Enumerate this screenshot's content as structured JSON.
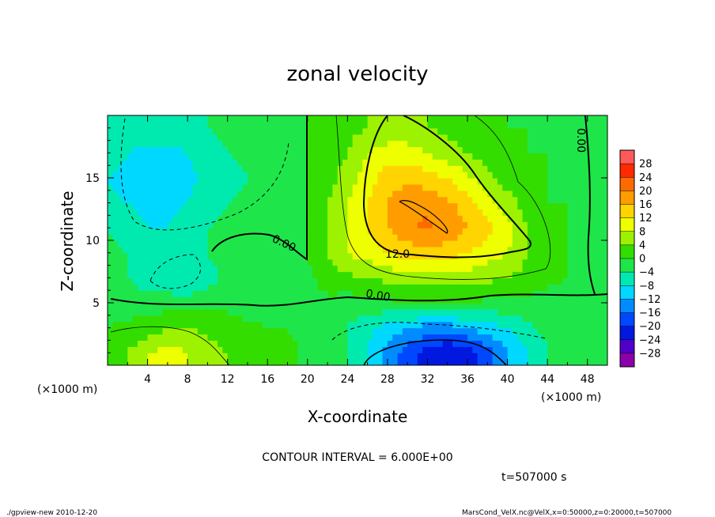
{
  "chart_data": {
    "type": "heatmap",
    "title": "zonal velocity",
    "xlabel": "X-coordinate",
    "ylabel": "Z-coordinate",
    "x_unit_label": "(×1000 m)",
    "z_unit_label": "(×1000 m)",
    "xlim": [
      0,
      50
    ],
    "ylim": [
      0,
      20
    ],
    "x_ticks": [
      4,
      8,
      12,
      16,
      20,
      24,
      28,
      32,
      36,
      40,
      44,
      48
    ],
    "y_ticks": [
      5,
      10,
      15
    ],
    "contour_interval_text": "CONTOUR INTERVAL = 6.000E+00",
    "time_text": "t=507000 s",
    "footer_left": "./gpview-new 2010-12-20",
    "footer_right": "MarsCond_VelX.nc@VelX,x=0:50000,z=0:20000,t=507000",
    "contour_labels": [
      {
        "text": "0.00",
        "x": 17.5,
        "z": 9.5
      },
      {
        "text": "12.0",
        "x": 29,
        "z": 8.6
      },
      {
        "text": "0.00",
        "x": 27,
        "z": 5.3
      },
      {
        "text": "0.00",
        "x": 47,
        "z": 18
      }
    ],
    "colorbar": {
      "levels": [
        "28",
        "24",
        "20",
        "16",
        "12",
        "8",
        "4",
        "0",
        "−4",
        "−8",
        "−12",
        "−16",
        "−20",
        "−24",
        "−28"
      ],
      "colors": [
        "#ff5a5a",
        "#ff2a00",
        "#ff6a00",
        "#ff9c00",
        "#ffd400",
        "#eeff00",
        "#9cf200",
        "#33dd00",
        "#1ee64a",
        "#00eab0",
        "#00d8ff",
        "#008cff",
        "#0048ff",
        "#0018e0",
        "#5000c8",
        "#8c00aa"
      ]
    },
    "field": {
      "nx": 26,
      "nz": 10,
      "x": [
        0,
        2,
        4,
        6,
        8,
        10,
        12,
        14,
        16,
        18,
        20,
        22,
        24,
        26,
        28,
        30,
        32,
        34,
        36,
        38,
        40,
        42,
        44,
        46,
        48,
        50
      ],
      "z": [
        1,
        3,
        5,
        7,
        9,
        11,
        13,
        15,
        17,
        19
      ],
      "u": [
        [
          2,
          4,
          8,
          10,
          8,
          6,
          4,
          2,
          2,
          1,
          -1,
          -2,
          -4,
          -8,
          -14,
          -18,
          -22,
          -24,
          -22,
          -18,
          -12,
          -8,
          -4,
          -1,
          0,
          0
        ],
        [
          0,
          1,
          2,
          4,
          4,
          3,
          2,
          1,
          0,
          0,
          -1,
          -2,
          -4,
          -7,
          -10,
          -12,
          -14,
          -14,
          -12,
          -10,
          -8,
          -5,
          -3,
          -1,
          0,
          0
        ],
        [
          -2,
          -2,
          -2,
          -2,
          -2,
          -1,
          -1,
          -2,
          -2,
          -1,
          -1,
          -1,
          -2,
          -1,
          -1,
          0,
          0,
          0,
          0,
          -1,
          -1,
          -1,
          -2,
          -2,
          -1,
          0
        ],
        [
          -4,
          -4,
          -6,
          -7,
          -8,
          -6,
          -2,
          -1,
          -4,
          -2,
          -1,
          2,
          3,
          4,
          5,
          6,
          6,
          6,
          6,
          5,
          4,
          3,
          1,
          0,
          -1,
          -2
        ],
        [
          -3,
          -4,
          -6,
          -6,
          -6,
          -4,
          -2,
          -2,
          -2,
          -1,
          0,
          4,
          8,
          10,
          12,
          14,
          14,
          14,
          12,
          10,
          8,
          4,
          1,
          0,
          -1,
          -1
        ],
        [
          -4,
          -6,
          -8,
          -8,
          -6,
          -4,
          -3,
          -3,
          -2,
          -1,
          0,
          4,
          8,
          12,
          16,
          19,
          21,
          19,
          16,
          13,
          10,
          4,
          1,
          0,
          -1,
          -1
        ],
        [
          -7,
          -8,
          -9,
          -9,
          -8,
          -6,
          -4,
          -3,
          -2,
          -1,
          0,
          4,
          8,
          12,
          16,
          19,
          19,
          17,
          14,
          10,
          6,
          2,
          0,
          0,
          0,
          0
        ],
        [
          -8,
          -9,
          -10,
          -10,
          -9,
          -7,
          -5,
          -4,
          -3,
          -1,
          0,
          2,
          6,
          10,
          14,
          15,
          14,
          12,
          9,
          5,
          2,
          1,
          0,
          0,
          0,
          0
        ],
        [
          -6,
          -8,
          -9,
          -9,
          -8,
          -6,
          -4,
          -3,
          -2,
          -1,
          0,
          2,
          4,
          8,
          10,
          10,
          8,
          6,
          4,
          2,
          1,
          0,
          0,
          0,
          -1,
          0
        ],
        [
          -4,
          -5,
          -6,
          -6,
          -5,
          -4,
          -3,
          -2,
          -1,
          0,
          0,
          1,
          3,
          4,
          5,
          5,
          4,
          3,
          2,
          1,
          0,
          0,
          0,
          0,
          0,
          0
        ]
      ]
    }
  }
}
